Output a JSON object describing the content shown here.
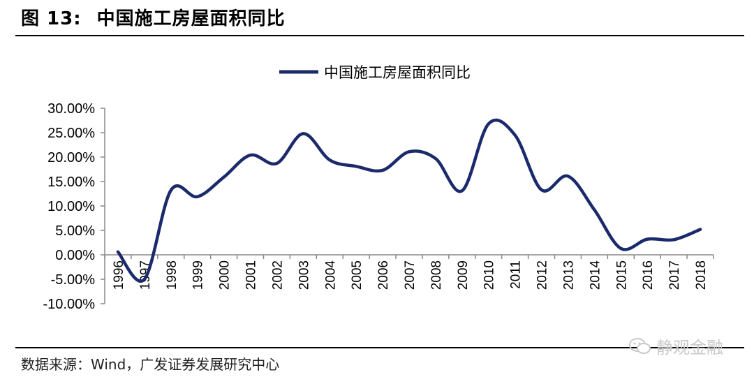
{
  "figure": {
    "title_num": "图 13:",
    "title_text": "中国施工房屋面积同比"
  },
  "source": "数据来源：Wind，广发证券发展研究中心",
  "watermark": {
    "text": "静观金融",
    "icon": "wechat-icon"
  },
  "chart_data": {
    "type": "line",
    "title": "",
    "xlabel": "",
    "ylabel": "",
    "x": [
      "1996",
      "1997",
      "1998",
      "1999",
      "2000",
      "2001",
      "2002",
      "2003",
      "2004",
      "2005",
      "2006",
      "2007",
      "2008",
      "2009",
      "2010",
      "2011",
      "2012",
      "2013",
      "2014",
      "2015",
      "2016",
      "2017",
      "2018"
    ],
    "series": [
      {
        "name": "中国施工房屋面积同比",
        "color": "#1b2a6b",
        "values": [
          0.6,
          -5.0,
          13.2,
          11.9,
          15.9,
          20.4,
          18.7,
          24.8,
          19.4,
          18.1,
          17.3,
          21.1,
          19.7,
          13.1,
          26.8,
          24.5,
          13.3,
          16.1,
          9.2,
          1.3,
          3.2,
          3.1,
          5.2
        ]
      }
    ],
    "ylim": [
      -10,
      30
    ],
    "yticks": [
      -10,
      -5,
      0,
      5,
      10,
      15,
      20,
      25,
      30
    ],
    "yticklabels": [
      "-10.00%",
      "-5.00%",
      "0.00%",
      "5.00%",
      "10.00%",
      "15.00%",
      "20.00%",
      "25.00%",
      "30.00%"
    ],
    "grid": false,
    "legend": "top-center"
  }
}
